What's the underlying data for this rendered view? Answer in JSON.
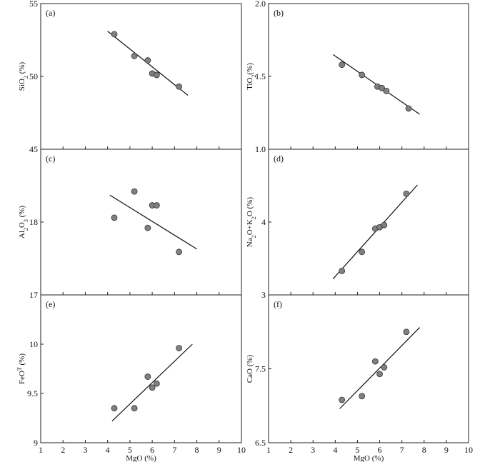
{
  "figure": {
    "x_axis_title": "MgO (%)",
    "x_ticks": [
      "1",
      "2",
      "3",
      "4",
      "5",
      "6",
      "7",
      "8",
      "9",
      "10"
    ]
  },
  "chart_data": [
    {
      "type": "scatter",
      "label": "(a)",
      "xlabel": "",
      "ylabel_main": "SiO",
      "ylabel_sub": "2",
      "ylabel_tail": " (%)",
      "xlim": [
        1,
        10
      ],
      "ylim": [
        45,
        55
      ],
      "y_ticks": [
        {
          "v": 45,
          "t": "45"
        },
        {
          "v": 50,
          "t": "50"
        },
        {
          "v": 55,
          "t": "55"
        }
      ],
      "points": [
        [
          4.3,
          52.9
        ],
        [
          5.2,
          51.4
        ],
        [
          5.8,
          51.1
        ],
        [
          6.0,
          50.2
        ],
        [
          6.2,
          50.1
        ],
        [
          7.2,
          49.3
        ]
      ],
      "fit": [
        [
          4.0,
          53.1
        ],
        [
          7.6,
          48.7
        ]
      ]
    },
    {
      "type": "scatter",
      "label": "(b)",
      "xlabel": "",
      "ylabel_main": "TiO",
      "ylabel_sub": "2",
      "ylabel_tail": "(%)",
      "xlim": [
        1,
        10
      ],
      "ylim": [
        1.0,
        2.0
      ],
      "y_ticks": [
        {
          "v": 1.0,
          "t": "1.0"
        },
        {
          "v": 1.5,
          "t": "1.5"
        },
        {
          "v": 2.0,
          "t": "2.0"
        }
      ],
      "points": [
        [
          4.3,
          1.58
        ],
        [
          5.2,
          1.51
        ],
        [
          5.9,
          1.43
        ],
        [
          6.1,
          1.42
        ],
        [
          6.3,
          1.4
        ],
        [
          7.3,
          1.28
        ]
      ],
      "fit": [
        [
          3.9,
          1.65
        ],
        [
          7.8,
          1.24
        ]
      ]
    },
    {
      "type": "scatter",
      "label": "(c)",
      "xlabel": "",
      "ylabel_main": "Al",
      "ylabel_sub": "2",
      "ylabel_mid": "O",
      "ylabel_sub2": "3",
      "ylabel_tail": " (%)",
      "xlim": [
        1,
        10
      ],
      "ylim": [
        17,
        19
      ],
      "y_ticks": [
        {
          "v": 17,
          "t": "17"
        },
        {
          "v": 18,
          "t": "18"
        }
      ],
      "points": [
        [
          4.3,
          18.06
        ],
        [
          5.2,
          18.42
        ],
        [
          5.8,
          17.92
        ],
        [
          6.0,
          18.23
        ],
        [
          6.2,
          18.23
        ],
        [
          7.2,
          17.59
        ]
      ],
      "fit": [
        [
          4.1,
          18.37
        ],
        [
          8.0,
          17.63
        ]
      ]
    },
    {
      "type": "scatter",
      "label": "(d)",
      "xlabel": "",
      "ylabel_main": "Na",
      "ylabel_sub": "2",
      "ylabel_mid": "O+K",
      "ylabel_sub2": "2",
      "ylabel_tail": "O (%)",
      "xlim": [
        1,
        10
      ],
      "ylim": [
        3,
        5
      ],
      "y_ticks": [
        {
          "v": 3,
          "t": "3"
        },
        {
          "v": 4,
          "t": "4"
        }
      ],
      "points": [
        [
          4.3,
          3.33
        ],
        [
          5.2,
          3.59
        ],
        [
          5.8,
          3.91
        ],
        [
          6.0,
          3.93
        ],
        [
          6.2,
          3.96
        ],
        [
          7.2,
          4.39
        ]
      ],
      "fit": [
        [
          3.9,
          3.22
        ],
        [
          7.7,
          4.51
        ]
      ]
    },
    {
      "type": "scatter",
      "label": "(e)",
      "xlabel": "MgO (%)",
      "ylabel_main": "FeO",
      "ylabel_sup": "T",
      "ylabel_tail": " (%)",
      "xlim": [
        1,
        10
      ],
      "ylim": [
        9,
        10.5
      ],
      "y_ticks": [
        {
          "v": 9,
          "t": "9"
        },
        {
          "v": 9.5,
          "t": "9.5"
        },
        {
          "v": 10,
          "t": "10"
        }
      ],
      "points": [
        [
          4.3,
          9.35
        ],
        [
          5.2,
          9.35
        ],
        [
          5.8,
          9.67
        ],
        [
          6.0,
          9.56
        ],
        [
          6.2,
          9.6
        ],
        [
          7.2,
          9.96
        ]
      ],
      "fit": [
        [
          4.2,
          9.22
        ],
        [
          7.8,
          10.0
        ]
      ]
    },
    {
      "type": "scatter",
      "label": "(f)",
      "xlabel": "MgO (%)",
      "ylabel_main": "CaO",
      "ylabel_tail": " (%)",
      "xlim": [
        1,
        10
      ],
      "ylim": [
        6.5,
        8.5
      ],
      "y_ticks": [
        {
          "v": 6.5,
          "t": "6.5"
        },
        {
          "v": 7.5,
          "t": "7.5"
        }
      ],
      "points": [
        [
          4.3,
          7.08
        ],
        [
          5.2,
          7.13
        ],
        [
          5.8,
          7.6
        ],
        [
          6.0,
          7.43
        ],
        [
          6.2,
          7.52
        ],
        [
          7.2,
          8.0
        ]
      ],
      "fit": [
        [
          4.2,
          6.96
        ],
        [
          7.8,
          8.06
        ]
      ]
    }
  ]
}
